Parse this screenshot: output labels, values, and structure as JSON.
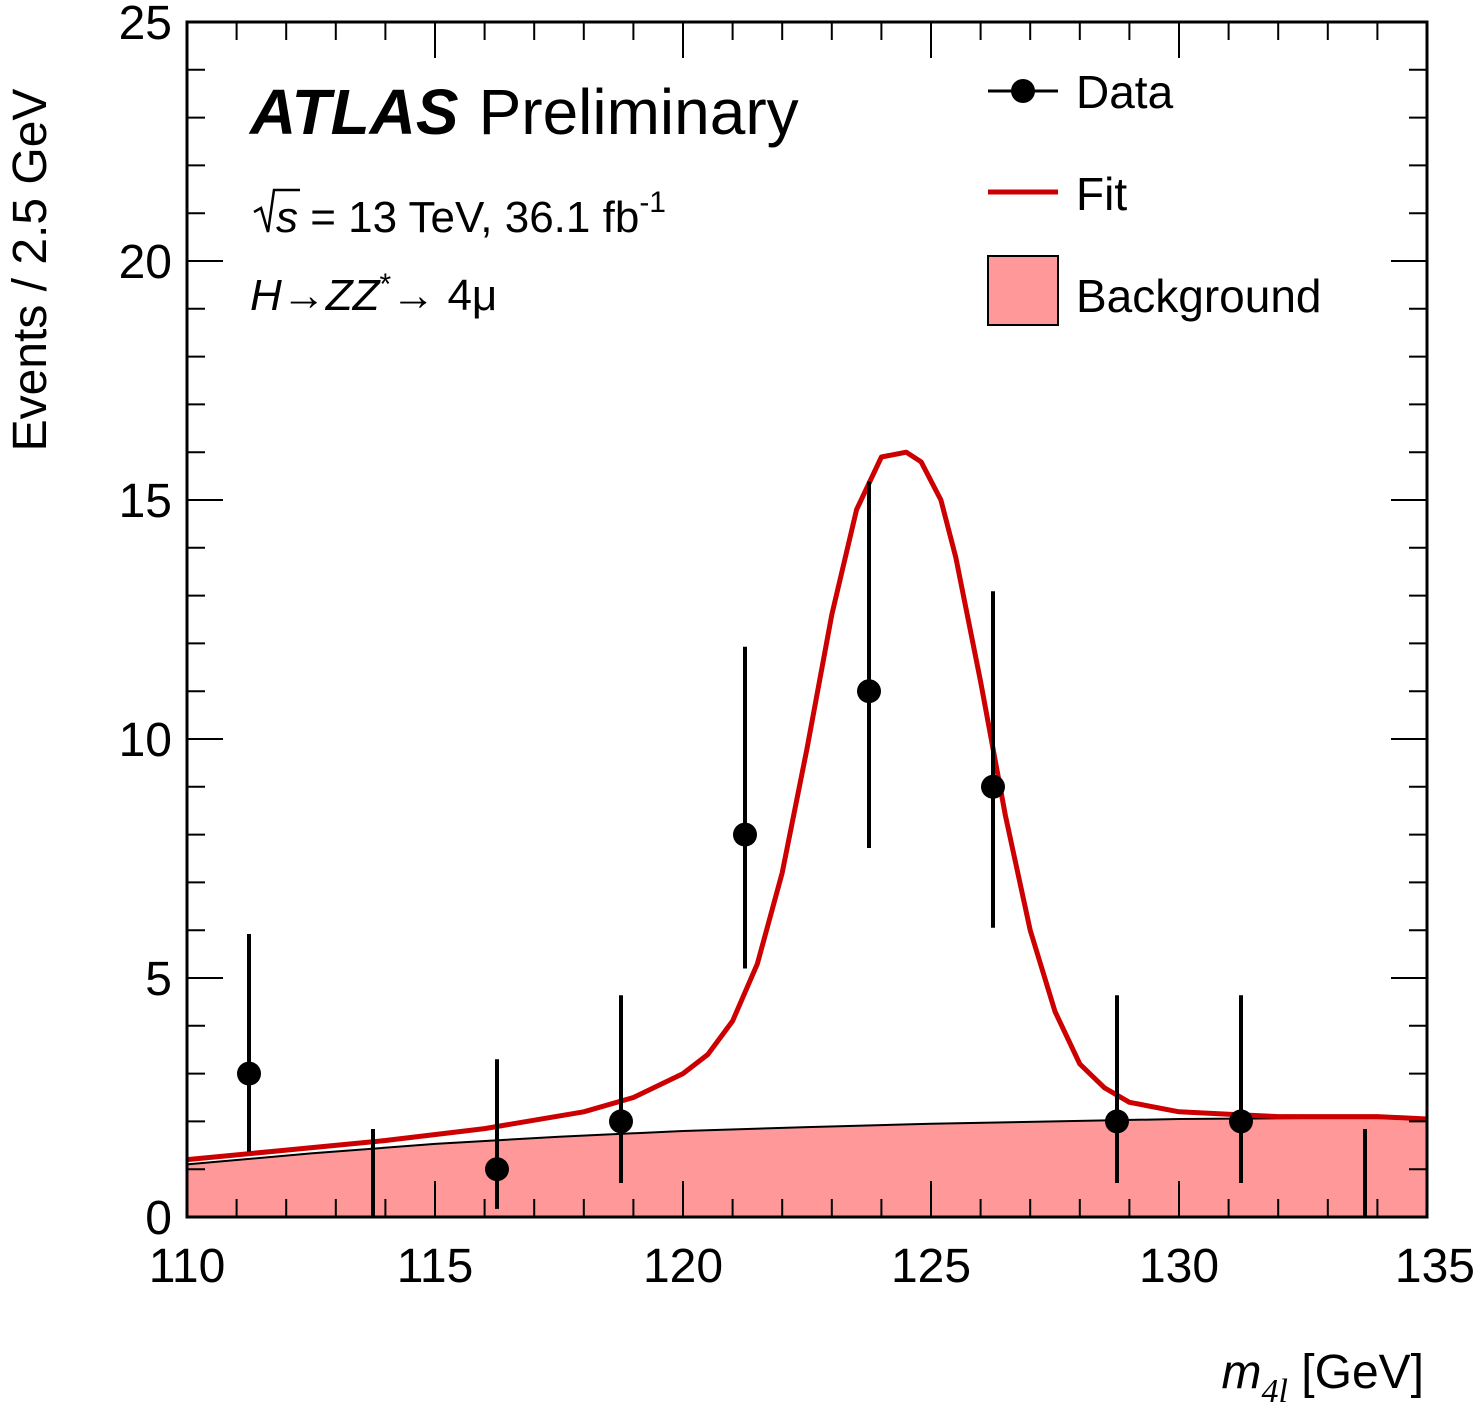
{
  "chart_data": {
    "type": "scatter",
    "experiment": "ATLAS",
    "status": "Preliminary",
    "energy_line": {
      "prefix": "s",
      "text": " = 13 TeV, 36.1 fb",
      "superscript": "-1"
    },
    "process_line": {
      "H": "H",
      "arrow1": "→",
      "ZZ": "ZZ",
      "star": "*",
      "arrow2": "→ 4μ"
    },
    "xlabel": {
      "m": "m",
      "sub": "4l",
      "unit": " [GeV]"
    },
    "ylabel": "Events /  2.5 GeV",
    "xlim": [
      110,
      135
    ],
    "ylim": [
      0,
      25
    ],
    "x_ticks": [
      "110",
      "115",
      "120",
      "125",
      "130",
      "135"
    ],
    "y_ticks": [
      "0",
      "5",
      "10",
      "15",
      "20",
      "25"
    ],
    "legend_position": "top-right",
    "legend": [
      {
        "label": "Data",
        "kind": "marker"
      },
      {
        "label": "Fit",
        "kind": "line",
        "color": "#cc0000"
      },
      {
        "label": "Background",
        "kind": "fill",
        "color": "#ff9999"
      }
    ],
    "series": [
      {
        "name": "Data",
        "kind": "points",
        "color": "#000000",
        "points": [
          {
            "x": 111.25,
            "y": 3,
            "lo": 1.37,
            "hi": 5.92
          },
          {
            "x": 113.75,
            "y": 0,
            "lo": 0,
            "hi": 1.84
          },
          {
            "x": 116.25,
            "y": 1,
            "lo": 0.17,
            "hi": 3.3
          },
          {
            "x": 118.75,
            "y": 2,
            "lo": 0.71,
            "hi": 4.64
          },
          {
            "x": 121.25,
            "y": 8,
            "lo": 5.2,
            "hi": 11.93
          },
          {
            "x": 123.75,
            "y": 11,
            "lo": 7.72,
            "hi": 15.39
          },
          {
            "x": 126.25,
            "y": 9,
            "lo": 6.05,
            "hi": 13.09
          },
          {
            "x": 128.75,
            "y": 2,
            "lo": 0.71,
            "hi": 4.64
          },
          {
            "x": 131.25,
            "y": 2,
            "lo": 0.71,
            "hi": 4.64
          },
          {
            "x": 133.75,
            "y": 0,
            "lo": 0,
            "hi": 1.84
          }
        ]
      },
      {
        "name": "Fit",
        "kind": "line",
        "color": "#cc0000",
        "x": [
          110,
          112,
          114,
          116,
          118,
          119,
          120,
          120.5,
          121,
          121.5,
          122,
          122.5,
          123,
          123.5,
          124,
          124.5,
          124.8,
          125.2,
          125.5,
          126,
          126.5,
          127,
          127.5,
          128,
          128.5,
          129,
          130,
          131,
          132,
          133,
          134,
          135
        ],
        "y": [
          1.2,
          1.4,
          1.6,
          1.85,
          2.2,
          2.5,
          3.0,
          3.4,
          4.1,
          5.3,
          7.2,
          9.8,
          12.6,
          14.8,
          15.9,
          16.0,
          15.8,
          15.0,
          13.8,
          11.2,
          8.4,
          6.0,
          4.3,
          3.2,
          2.7,
          2.4,
          2.2,
          2.15,
          2.1,
          2.1,
          2.1,
          2.05
        ]
      },
      {
        "name": "Background",
        "kind": "area",
        "color": "#ff9999",
        "x": [
          110,
          112.5,
          115,
          117.5,
          120,
          122.5,
          125,
          127.5,
          130,
          132.5,
          135
        ],
        "y": [
          1.1,
          1.33,
          1.53,
          1.68,
          1.8,
          1.88,
          1.95,
          2.0,
          2.05,
          2.07,
          2.07
        ]
      }
    ]
  }
}
